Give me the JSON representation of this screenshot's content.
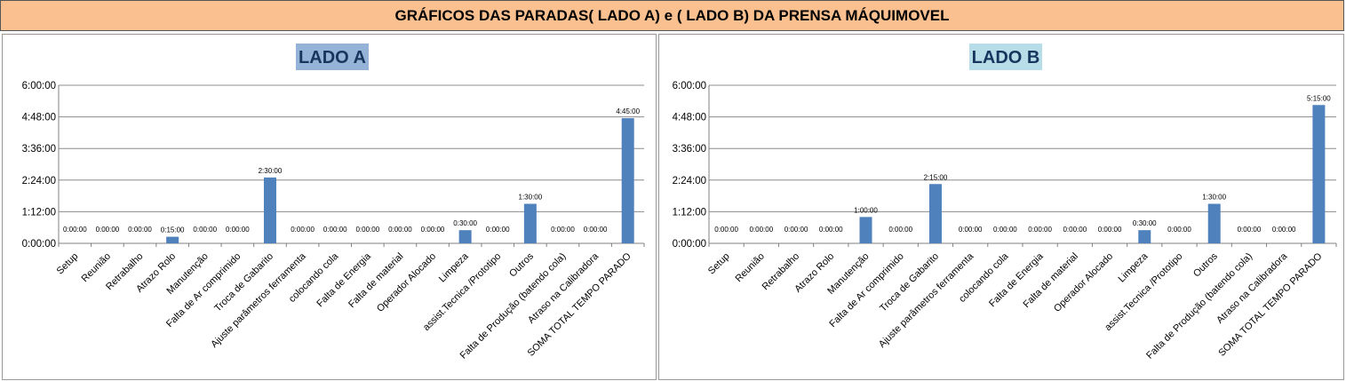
{
  "header": {
    "title": "GRÁFICOS DAS PARADAS( LADO A) e ( LADO B) DA PRENSA MÁQUIMOVEL"
  },
  "colors": {
    "banner": "#fac090",
    "bar": "#4f81bd",
    "title_a_bg": "#95b3d7",
    "title_b_bg": "#b7dde8",
    "grid": "#8c8c8c"
  },
  "chart_data": [
    {
      "type": "bar",
      "title": "LADO A",
      "categories": [
        "Setup",
        "Reunião",
        "Retrabalho",
        "Atrazo Rolo",
        "Manutenção",
        "Falta de Ar comprimido",
        "Troca de Gabarito",
        "Ajuste parâmetros ferramenta",
        "colocando cola",
        "Falta de Energia",
        "Falta de material",
        "Operador Alocado",
        "Limpeza",
        "assist.Tecnica /Prototipo",
        "Outros",
        "Falta de Produção (batendo cola)",
        "Atraso na Calibradora",
        "SOMA TOTAL TEMPO PARADO"
      ],
      "values_minutes": [
        0,
        0,
        0,
        15,
        0,
        0,
        150,
        0,
        0,
        0,
        0,
        0,
        30,
        0,
        90,
        0,
        0,
        285
      ],
      "data_labels": [
        "0:00:00",
        "0:00:00",
        "0:00:00",
        "0:15:00",
        "0:00:00",
        "0:00:00",
        "2:30:00",
        "0:00:00",
        "0:00:00",
        "0:00:00",
        "0:00:00",
        "0:00:00",
        "0:30:00",
        "0:00:00",
        "1:30:00",
        "0:00:00",
        "0:00:00",
        "4:45:00"
      ],
      "y_ticks": [
        "0:00:00",
        "1:12:00",
        "2:24:00",
        "3:36:00",
        "4:48:00",
        "6:00:00"
      ],
      "ylim_minutes": [
        0,
        360
      ],
      "grid": true
    },
    {
      "type": "bar",
      "title": "LADO B",
      "categories": [
        "Setup",
        "Reunião",
        "Retrabalho",
        "Atrazo Rolo",
        "Manutenção",
        "Falta de Ar comprimido",
        "Troca de Gabarito",
        "Ajuste parâmetros ferramenta",
        "colocando cola",
        "Falta de Energia",
        "Falta de material",
        "Operador Alocado",
        "Limpeza",
        "assist.Tecnica /Prototipo",
        "Outros",
        "Falta de Produção (batendo cola)",
        "Atraso na Calibradora",
        "SOMA TOTAL TEMPO PARADO"
      ],
      "values_minutes": [
        0,
        0,
        0,
        0,
        60,
        0,
        135,
        0,
        0,
        0,
        0,
        0,
        30,
        0,
        90,
        0,
        0,
        315
      ],
      "data_labels": [
        "0:00:00",
        "0:00:00",
        "0:00:00",
        "0:00:00",
        "1:00:00",
        "0:00:00",
        "2:15:00",
        "0:00:00",
        "0:00:00",
        "0:00:00",
        "0:00:00",
        "0:00:00",
        "0:30:00",
        "0:00:00",
        "1:30:00",
        "0:00:00",
        "0:00:00",
        "5:15:00"
      ],
      "y_ticks": [
        "0:00:00",
        "1:12:00",
        "2:24:00",
        "3:36:00",
        "4:48:00",
        "6:00:00"
      ],
      "ylim_minutes": [
        0,
        360
      ],
      "grid": true
    }
  ]
}
